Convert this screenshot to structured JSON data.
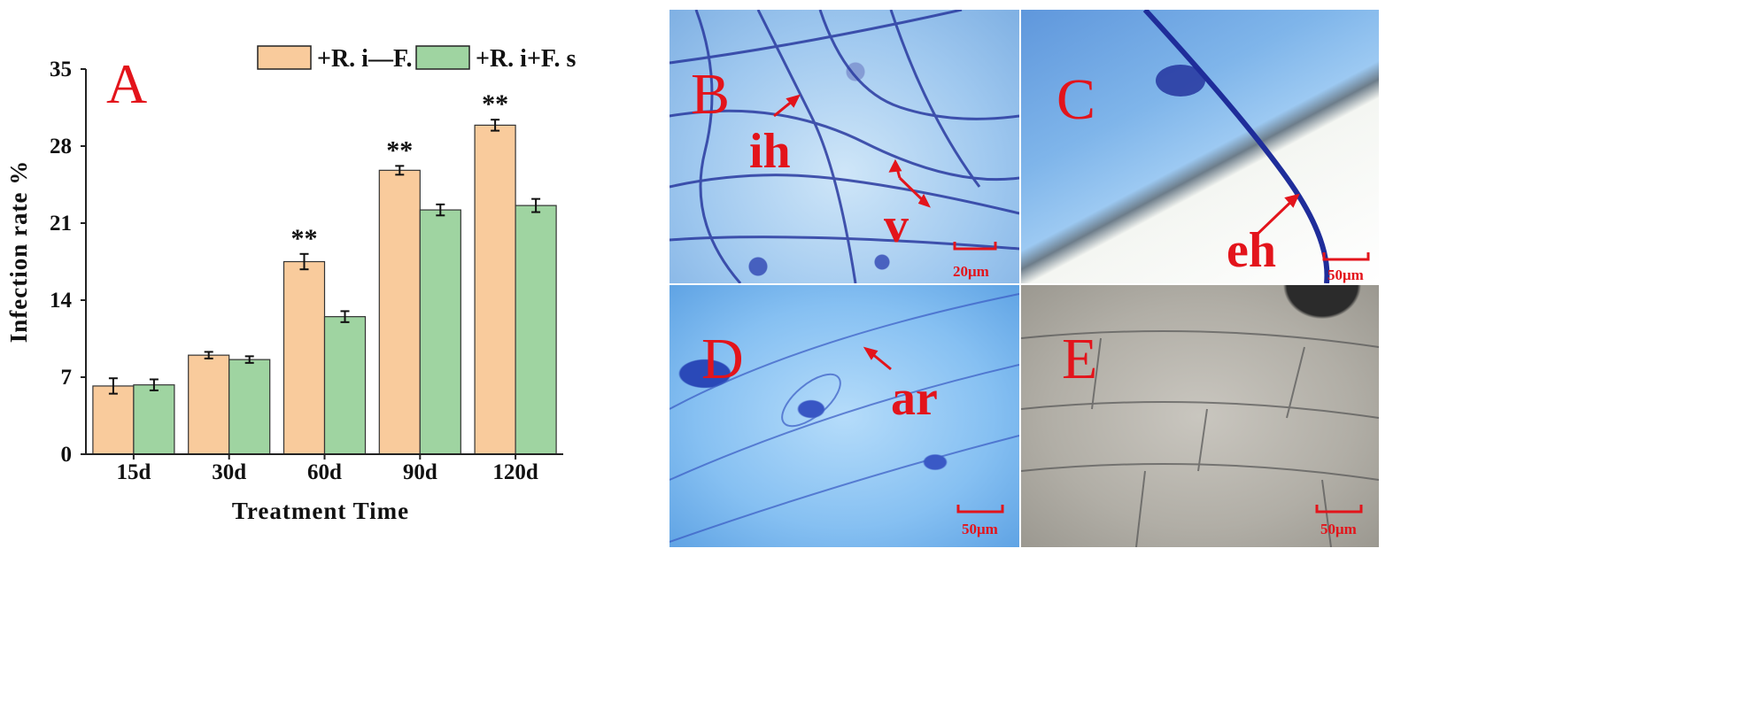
{
  "colors": {
    "series_1": "#f9cb9c",
    "series_2": "#9fd4a1",
    "annotation": "#e3141b"
  },
  "chart_data": {
    "type": "bar",
    "panel_label": "A",
    "categories": [
      "15d",
      "30d",
      "60d",
      "90d",
      "120d"
    ],
    "series": [
      {
        "name": "+R. i—F. s",
        "values": [
          6.2,
          9.0,
          17.5,
          25.8,
          29.9
        ],
        "errors": [
          0.7,
          0.3,
          0.7,
          0.4,
          0.5
        ]
      },
      {
        "name": "+R. i+F. s",
        "values": [
          6.3,
          8.6,
          12.5,
          22.2,
          22.6
        ],
        "errors": [
          0.5,
          0.3,
          0.5,
          0.5,
          0.6
        ]
      }
    ],
    "significance": [
      "",
      "",
      "**",
      "**",
      "**"
    ],
    "xlabel": "Treatment Time",
    "ylabel": "Infection rate %",
    "ylim": [
      0,
      35
    ],
    "yticks": [
      0,
      7,
      14,
      21,
      28,
      35
    ],
    "grid": false,
    "legend": "top-right"
  },
  "micrographs": {
    "B": {
      "letter": "B",
      "labels": [
        "ih",
        "v"
      ],
      "scale": "20μm"
    },
    "C": {
      "letter": "C",
      "labels": [
        "eh"
      ],
      "scale": "50μm"
    },
    "D": {
      "letter": "D",
      "labels": [
        "ar"
      ],
      "scale": "50μm"
    },
    "E": {
      "letter": "E",
      "labels": [],
      "scale": "50μm"
    }
  }
}
